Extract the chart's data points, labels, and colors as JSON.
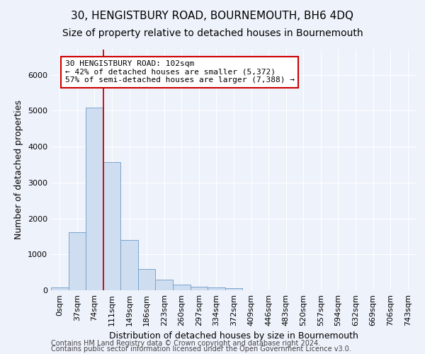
{
  "title": "30, HENGISTBURY ROAD, BOURNEMOUTH, BH6 4DQ",
  "subtitle": "Size of property relative to detached houses in Bournemouth",
  "xlabel": "Distribution of detached houses by size in Bournemouth",
  "ylabel": "Number of detached properties",
  "bin_labels": [
    "0sqm",
    "37sqm",
    "74sqm",
    "111sqm",
    "149sqm",
    "186sqm",
    "223sqm",
    "260sqm",
    "297sqm",
    "334sqm",
    "372sqm",
    "409sqm",
    "446sqm",
    "483sqm",
    "520sqm",
    "557sqm",
    "594sqm",
    "632sqm",
    "669sqm",
    "706sqm",
    "743sqm"
  ],
  "bar_heights": [
    75,
    1620,
    5080,
    3570,
    1400,
    590,
    290,
    150,
    100,
    70,
    55,
    0,
    0,
    0,
    0,
    0,
    0,
    0,
    0,
    0,
    0
  ],
  "bar_color": "#cfddf0",
  "bar_edge_color": "#7aa4cc",
  "annotation_text": "30 HENGISTBURY ROAD: 102sqm\n← 42% of detached houses are smaller (5,372)\n57% of semi-detached houses are larger (7,388) →",
  "vline_x": 2.5,
  "vline_color": "#cc0000",
  "annotation_box_color": "#ffffff",
  "annotation_box_edge": "#cc0000",
  "footer1": "Contains HM Land Registry data © Crown copyright and database right 2024.",
  "footer2": "Contains public sector information licensed under the Open Government Licence v3.0.",
  "ylim": [
    0,
    6700
  ],
  "background_color": "#eef2fb",
  "grid_color": "#ffffff",
  "title_fontsize": 11,
  "subtitle_fontsize": 10,
  "axis_fontsize": 9,
  "tick_fontsize": 8,
  "annotation_fontsize": 8,
  "footer_fontsize": 7
}
